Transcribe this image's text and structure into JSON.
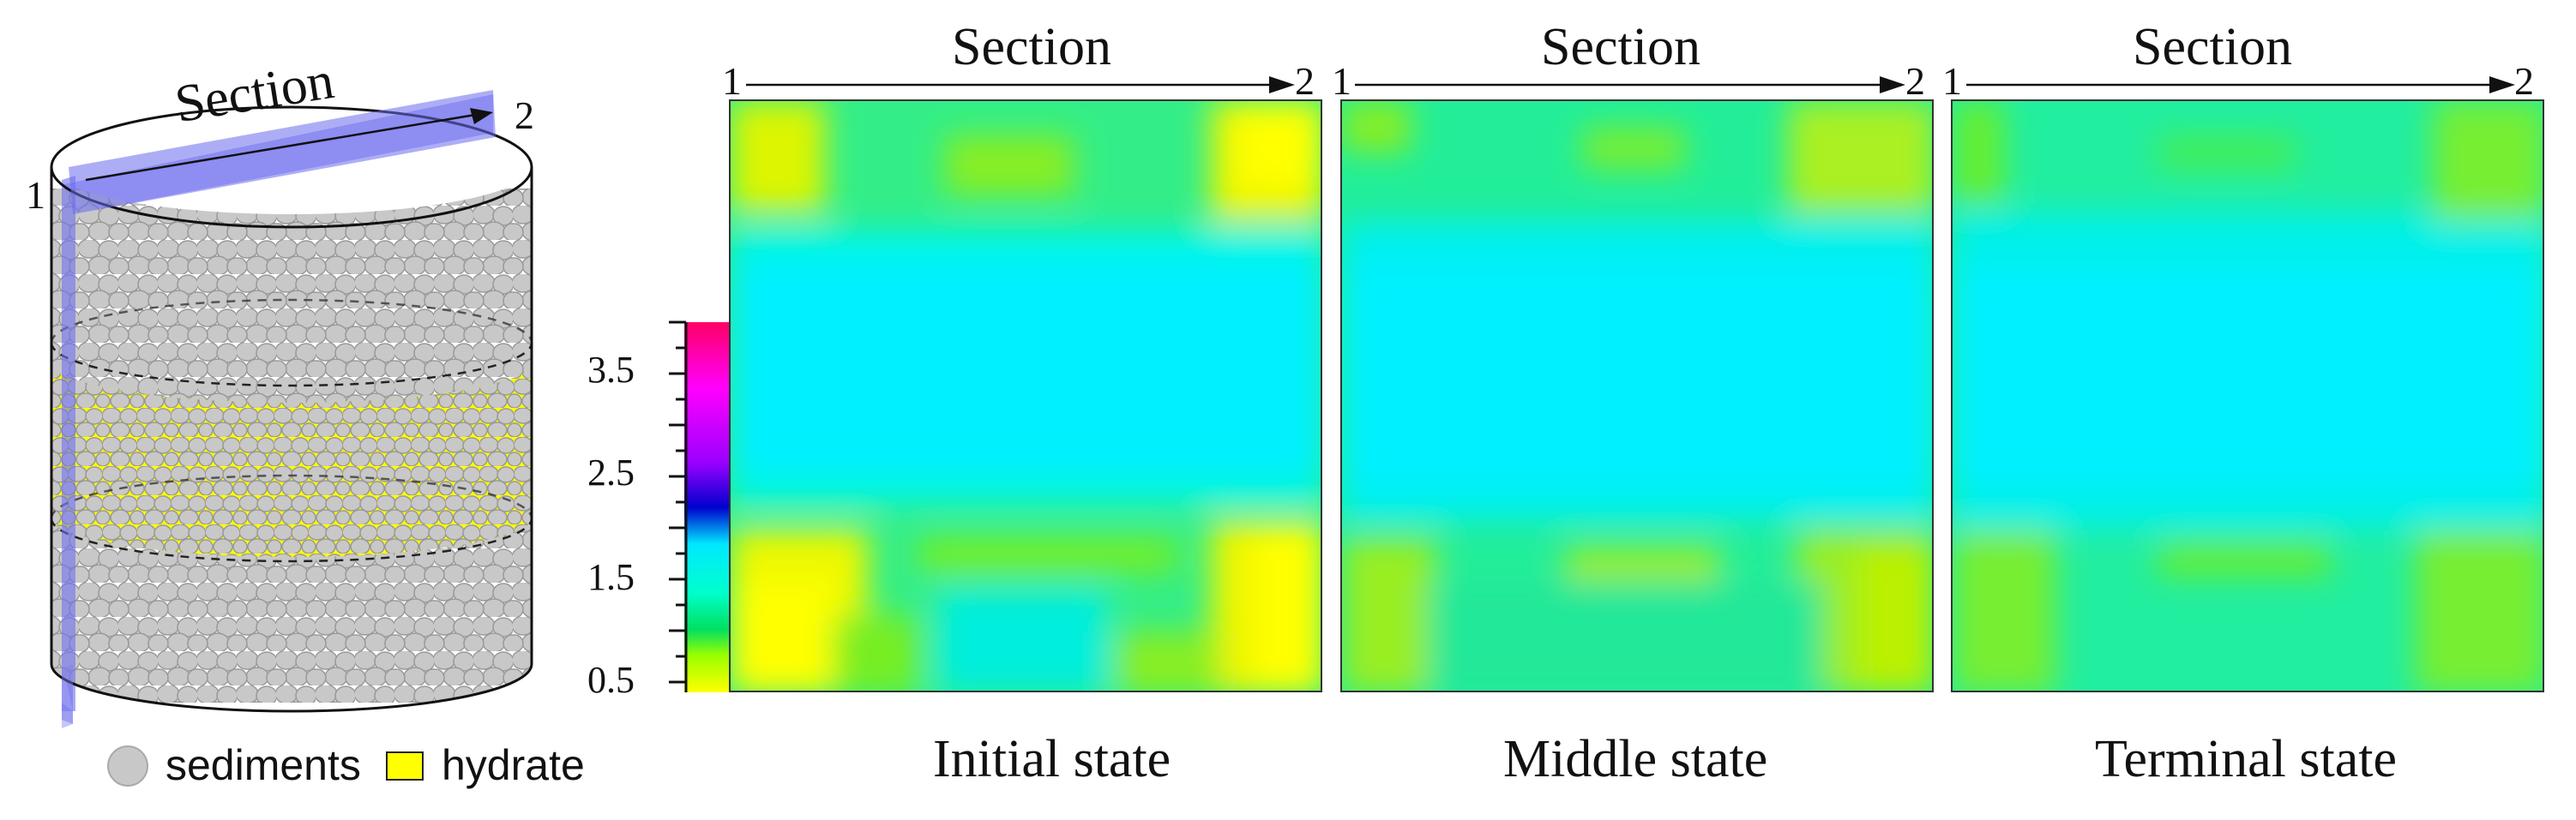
{
  "cylinder": {
    "section_label": "Section",
    "point_start": "1",
    "point_end": "2"
  },
  "legend": {
    "sediments_label": "sediments",
    "hydrate_label": "hydrate",
    "sediment_color": "#c8c8c8",
    "hydrate_color": "#ffff00"
  },
  "colorbar": {
    "ticks": [
      "3.5",
      "2.5",
      "1.5",
      "0.5"
    ]
  },
  "panels": [
    {
      "title": "Section",
      "start": "1",
      "end": "2",
      "label": "Initial state"
    },
    {
      "title": "Section",
      "start": "1",
      "end": "2",
      "label": "Middle state"
    },
    {
      "title": "Section",
      "start": "1",
      "end": "2",
      "label": "Terminal state"
    }
  ]
}
